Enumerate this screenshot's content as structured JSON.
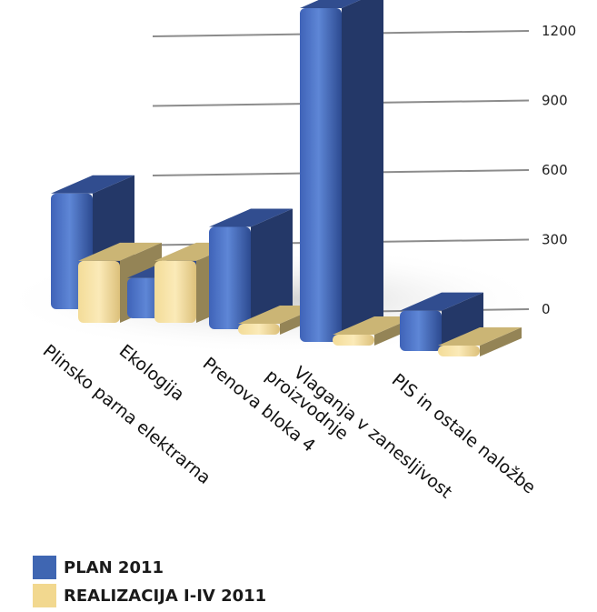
{
  "chart_data": {
    "type": "bar",
    "title": "",
    "xlabel": "",
    "ylabel": "",
    "ylim": [
      0,
      1200
    ],
    "yticks": [
      "1200",
      "900",
      "600",
      "300",
      "0"
    ],
    "categories": [
      "Plinsko parna elektrarna",
      "Ekologija",
      "Prenova bloka 4",
      "Vlaganja v zanesljivost proizvodnje",
      "PIS in ostale naložbe"
    ],
    "series": [
      {
        "name": "PLAN 2011",
        "color": "#3a5aa8",
        "values": [
          430,
          150,
          380,
          1240,
          150
        ]
      },
      {
        "name": "REALIZACIJA I-IV 2011",
        "color": "#efd58a",
        "values": [
          230,
          230,
          30,
          20,
          30
        ]
      }
    ],
    "grid": true,
    "legend_position": "bottom-left"
  }
}
